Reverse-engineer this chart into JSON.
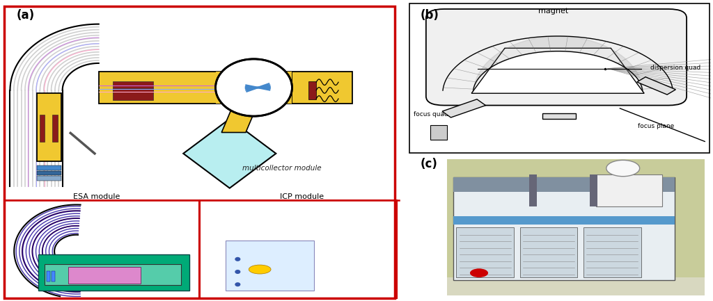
{
  "fig_width": 10.24,
  "fig_height": 4.33,
  "dpi": 100,
  "bg_color": "#ffffff",
  "panel_a_border_color": "#cc0000",
  "label_a": "(a)",
  "label_b": "(b)",
  "label_c": "(c)",
  "text_multicollector": "multicollector module",
  "text_esa": "ESA module",
  "text_icp": "ICP module",
  "text_magnet": "magnet",
  "text_focus_quad": "focus quad",
  "text_dispersion_quad": "dispersion quad",
  "text_focus_plane": "focus plane",
  "yellow_color": "#f0c830",
  "dark_red_color": "#8b1a1a",
  "cyan_color": "#b8eef0",
  "purple_color": "#2a0060",
  "green_color": "#007755",
  "light_blue_bg": "#ddeeff"
}
